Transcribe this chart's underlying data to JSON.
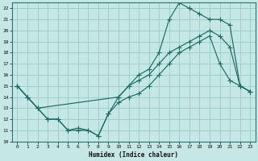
{
  "xlabel": "Humidex (Indice chaleur)",
  "bg_color": "#c5e8e5",
  "grid_color": "#9ecece",
  "line_color": "#1e6b65",
  "xlim": [
    -0.5,
    23.5
  ],
  "ylim": [
    10,
    22.5
  ],
  "xticks": [
    0,
    1,
    2,
    3,
    4,
    5,
    6,
    7,
    8,
    9,
    10,
    11,
    12,
    13,
    14,
    15,
    16,
    17,
    18,
    19,
    20,
    21,
    22,
    23
  ],
  "yticks": [
    10,
    11,
    12,
    13,
    14,
    15,
    16,
    17,
    18,
    19,
    20,
    21,
    22
  ],
  "line1_x": [
    0,
    1,
    2,
    3,
    4,
    5,
    6,
    7,
    8,
    9,
    10,
    11,
    12,
    13,
    14,
    15,
    16,
    17,
    18,
    19,
    20,
    21,
    22,
    23
  ],
  "line1_y": [
    15,
    14,
    13,
    12,
    12,
    11,
    11.2,
    11,
    10.5,
    12.5,
    13.5,
    14,
    14.3,
    15,
    16,
    17,
    18,
    18.5,
    19,
    19.5,
    17,
    15.5,
    15,
    14.5
  ],
  "line2_x": [
    0,
    1,
    2,
    10,
    11,
    12,
    13,
    14,
    15,
    16,
    17,
    18,
    19,
    20,
    21,
    22,
    23
  ],
  "line2_y": [
    15,
    14,
    13,
    14,
    15,
    15.5,
    16,
    17,
    18,
    18.5,
    19,
    19.5,
    20,
    19.5,
    18.5,
    15,
    14.5
  ],
  "line3_x": [
    0,
    1,
    2,
    3,
    4,
    5,
    6,
    7,
    8,
    9,
    10,
    11,
    12,
    13,
    14,
    15,
    16,
    17,
    18,
    19,
    20,
    21,
    22,
    23
  ],
  "line3_y": [
    15,
    14,
    13,
    12,
    12,
    11,
    11,
    11,
    10.5,
    12.5,
    14,
    15,
    16,
    16.5,
    18,
    21,
    22.5,
    22,
    21.5,
    21,
    21,
    20.5,
    15,
    14.5
  ]
}
